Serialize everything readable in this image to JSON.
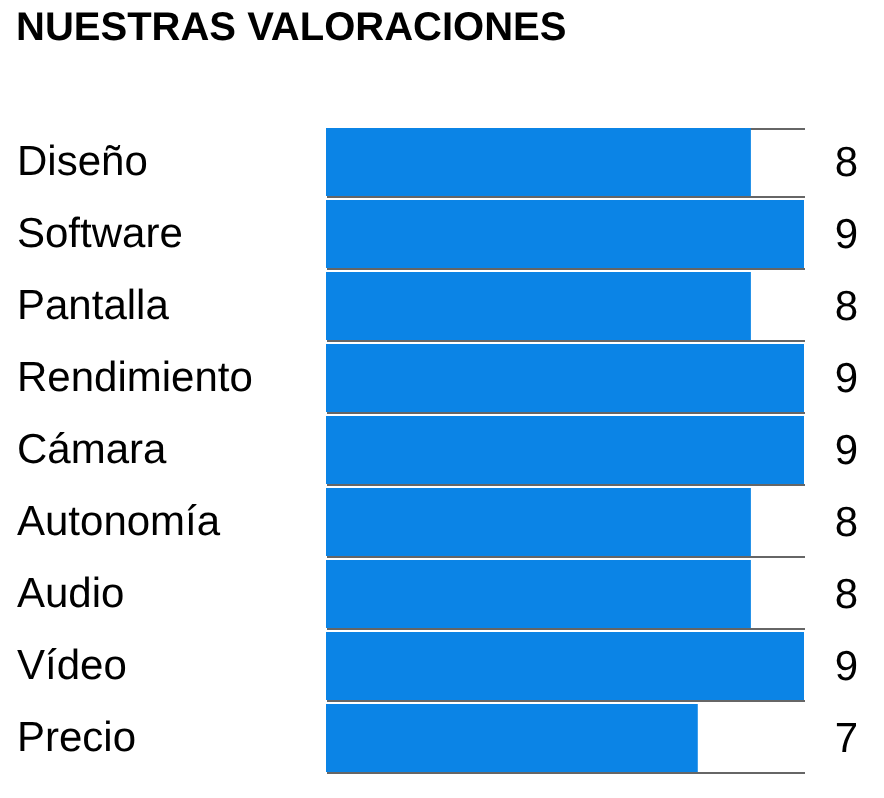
{
  "chart_data": {
    "type": "bar",
    "orientation": "horizontal",
    "title": "NUESTRAS VALORACIONES",
    "categories": [
      "Diseño",
      "Software",
      "Pantalla",
      "Rendimiento",
      "Cámara",
      "Autonomía",
      "Audio",
      "Vídeo",
      "Precio"
    ],
    "values": [
      8,
      9,
      8,
      9,
      9,
      8,
      8,
      9,
      7
    ],
    "color": "#0b84e6",
    "data_labels": true,
    "grid": "y"
  }
}
